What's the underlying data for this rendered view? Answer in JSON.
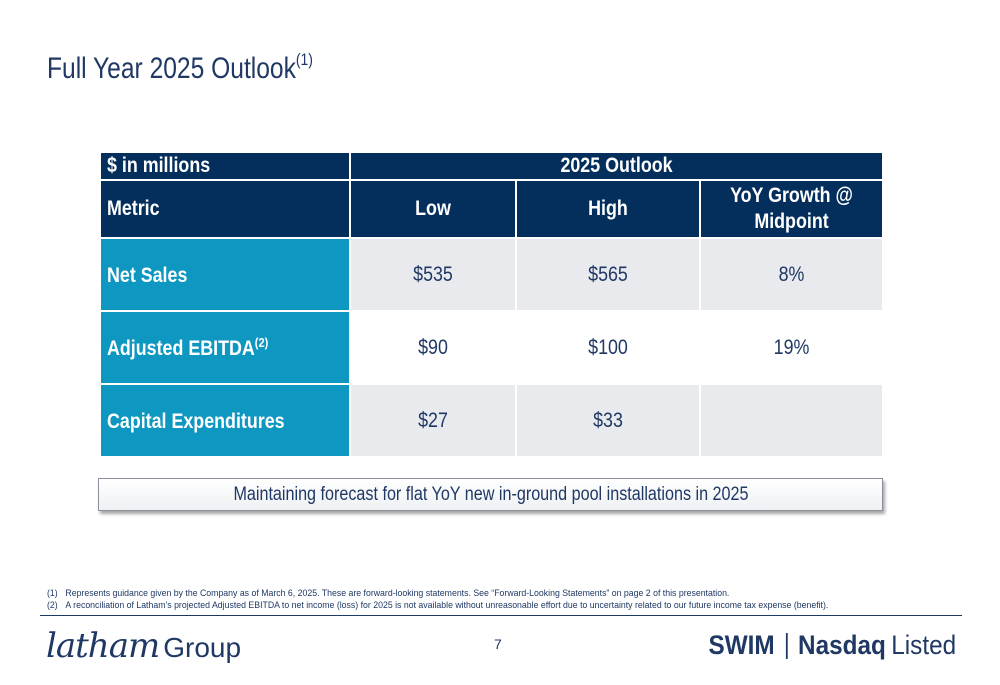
{
  "slide": {
    "title": "Full Year 2025 Outlook",
    "title_sup": "(1)",
    "page_number": "7"
  },
  "table": {
    "corner_label": "$ in millions",
    "group_header": "2025 Outlook",
    "col_metric": "Metric",
    "col_low": "Low",
    "col_high": "High",
    "col_growth_line1": "YoY Growth @",
    "col_growth_line2": "Midpoint",
    "rows": [
      {
        "metric": "Net Sales",
        "sup": "",
        "low": "$535",
        "high": "$565",
        "growth": "8%"
      },
      {
        "metric": "Adjusted EBITDA",
        "sup": "(2)",
        "low": "$90",
        "high": "$100",
        "growth": "19%"
      },
      {
        "metric": "Capital Expenditures",
        "sup": "",
        "low": "$27",
        "high": "$33",
        "growth": ""
      }
    ]
  },
  "note": "Maintaining forecast for flat YoY new in-ground pool installations in 2025",
  "footnotes": [
    {
      "num": "(1)",
      "text": "Represents guidance given by the Company as of March 6, 2025. These are forward-looking statements. See “Forward-Looking Statements” on page 2 of this presentation."
    },
    {
      "num": "(2)",
      "text": "A reconciliation of Latham’s projected Adjusted EBITDA to net income (loss) for 2025 is not available without unreasonable effort due to uncertainty related to our future income tax expense (benefit)."
    }
  ],
  "footer": {
    "logo_script": "latham",
    "logo_group": "Group",
    "ticker_symbol": "SWIM",
    "exchange_bold": "Nasdaq",
    "exchange_light": "Listed"
  },
  "colors": {
    "navy": "#042f5c",
    "teal": "#0e97c0",
    "light_gray": "#e8eaee",
    "text": "#1f3864"
  }
}
